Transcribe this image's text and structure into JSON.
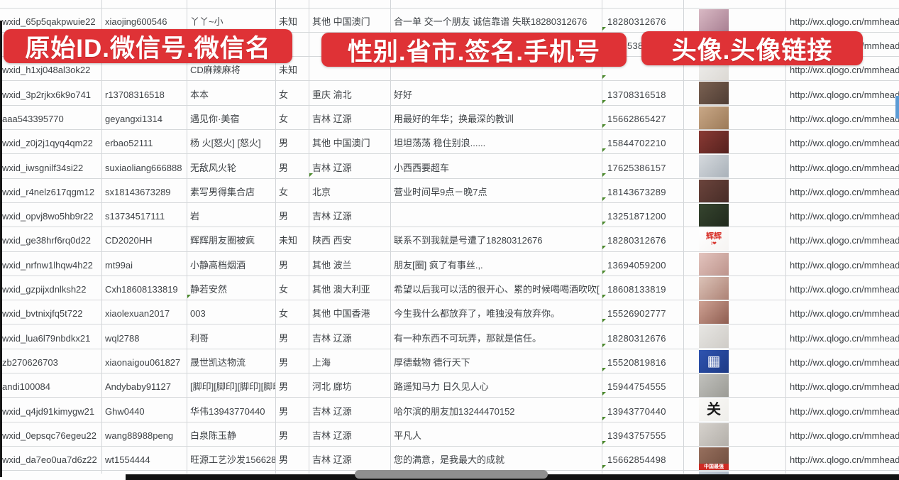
{
  "app": {
    "type": "spreadsheet-screenshot",
    "visible_chrome": "none"
  },
  "banners": [
    {
      "text": "原始ID.微信号.微信名"
    },
    {
      "text": "性别.省市.签名.手机号"
    },
    {
      "text": "头像.头像链接"
    }
  ],
  "colors": {
    "banner_red": "#df3236",
    "banner_text": "#ffffff",
    "grid_line": "#d2d5d8",
    "cell_text": "#3f4347",
    "flag_green": "#4b8a2c",
    "bottom_bar": "#121212",
    "scroll_handle": "#8f8f8f",
    "scrollbar_fragment_blue": "#5b9bd5",
    "avatar_strip_red": "#ce2b24"
  },
  "url_repeated": "http://wx.qlogo.cn/mmhead",
  "rows": [
    {
      "id": "wxid_65p5qakpwuie22",
      "wechat_id": "xiaojing600546",
      "name": "丫丫~小",
      "gender": "未知",
      "province": "其他 中国澳门",
      "signature": "合一单 交一个朋友 诚信靠谱 失联18280312676",
      "phone": "18280312676",
      "phone_frag": false,
      "phone_flag": true,
      "name_flag": false,
      "province_flag": false,
      "url": "http://wx.qlogo.cn/mmhead",
      "avatar": {
        "c1": "#d9b9c4",
        "c2": "#a87f92",
        "label": "",
        "label_color": "",
        "sub": "",
        "strip": ""
      }
    },
    {
      "id": "",
      "wechat_id": "",
      "name": "",
      "gender": "",
      "province": "",
      "signature": "",
      "phone": "5386",
      "phone_frag": true,
      "phone_flag": true,
      "name_flag": false,
      "province_flag": false,
      "url": "http://wx.qlogo.cn/mmhead",
      "avatar": {
        "c1": "#6a79c0",
        "c2": "#8a9ad8",
        "label": "",
        "label_color": "",
        "sub": "",
        "strip": ""
      }
    },
    {
      "id": "wxid_h1xj048al3ok22",
      "wechat_id": "",
      "name": "CD麻辣麻将",
      "gender": "未知",
      "province": "",
      "signature": "",
      "phone": "",
      "phone_frag": false,
      "phone_flag": true,
      "name_flag": false,
      "province_flag": false,
      "url": "http://wx.qlogo.cn/mmhead",
      "avatar": {
        "c1": "#efeeec",
        "c2": "#dcd9d4",
        "label": "",
        "label_color": "",
        "sub": "",
        "strip": ""
      }
    },
    {
      "id": "wxid_3p2rjkx6k9o741",
      "wechat_id": "r13708316518",
      "name": "本本",
      "gender": "女",
      "province": "重庆 渝北",
      "signature": "好好",
      "phone": "13708316518",
      "phone_frag": false,
      "phone_flag": true,
      "name_flag": false,
      "province_flag": false,
      "url": "http://wx.qlogo.cn/mmhead",
      "avatar": {
        "c1": "#7a6152",
        "c2": "#4e3c33",
        "label": "",
        "label_color": "",
        "sub": "",
        "strip": ""
      }
    },
    {
      "id": "aaa543395770",
      "wechat_id": "geyangxi1314",
      "name": "遇见你·美宿",
      "gender": "女",
      "province": "吉林 辽源",
      "signature": "用最好的年华；换最深的教训",
      "phone": "15662865427",
      "phone_frag": false,
      "phone_flag": true,
      "name_flag": false,
      "province_flag": false,
      "url": "http://wx.qlogo.cn/mmhead",
      "avatar": {
        "c1": "#c9a887",
        "c2": "#9c7a58",
        "label": "",
        "label_color": "",
        "sub": "",
        "strip": ""
      }
    },
    {
      "id": "wxid_z0j2j1qyq4qm22",
      "wechat_id": "erbao52111",
      "name": "杨 火[怒火] [怒火]",
      "gender": "男",
      "province": "其他 中国澳门",
      "signature": "坦坦荡荡 稳住别浪......",
      "phone": "15844702210",
      "phone_frag": false,
      "phone_flag": true,
      "name_flag": false,
      "province_flag": false,
      "url": "http://wx.qlogo.cn/mmhead",
      "avatar": {
        "c1": "#8a3a34",
        "c2": "#55211e",
        "label": "",
        "label_color": "",
        "sub": "",
        "strip": ""
      }
    },
    {
      "id": "wxid_iwsgnilf34si22",
      "wechat_id": "suxiaoliang666888",
      "name": "无敌风火轮",
      "gender": "男",
      "province": "吉林 辽源",
      "signature": "小西西要超车",
      "phone": "17625386157",
      "phone_frag": false,
      "phone_flag": true,
      "name_flag": false,
      "province_flag": true,
      "url": "http://wx.qlogo.cn/mmhead",
      "avatar": {
        "c1": "#d6dade",
        "c2": "#a9b1b9",
        "label": "",
        "label_color": "",
        "sub": "",
        "strip": ""
      }
    },
    {
      "id": "wxid_r4nelz617qgm12",
      "wechat_id": "sx18143673289",
      "name": "素写男得集合店",
      "gender": "女",
      "province": "北京",
      "signature": "营业时间早9点－晚7点",
      "phone": "18143673289",
      "phone_frag": false,
      "phone_flag": true,
      "name_flag": false,
      "province_flag": false,
      "url": "http://wx.qlogo.cn/mmhead",
      "avatar": {
        "c1": "#6b443c",
        "c2": "#472c27",
        "label": "",
        "label_color": "",
        "sub": "",
        "strip": ""
      }
    },
    {
      "id": "wxid_opvj8wo5hb9r22",
      "wechat_id": "s13734517111",
      "name": "岩",
      "gender": "男",
      "province": "吉林 辽源",
      "signature": "",
      "phone": "13251871200",
      "phone_frag": false,
      "phone_flag": true,
      "name_flag": false,
      "province_flag": false,
      "url": "http://wx.qlogo.cn/mmhead",
      "avatar": {
        "c1": "#36452f",
        "c2": "#20291c",
        "label": "",
        "label_color": "",
        "sub": "",
        "strip": ""
      }
    },
    {
      "id": "wxid_ge38hrf6rq0d22",
      "wechat_id": "CD2020HH",
      "name": "辉辉朋友圈被疯",
      "gender": "未知",
      "province": "陕西 西安",
      "signature": "联系不到我就是号遭了18280312676",
      "phone": "18280312676",
      "phone_frag": false,
      "phone_flag": true,
      "name_flag": false,
      "province_flag": false,
      "url": "http://wx.qlogo.cn/mmhead",
      "avatar": {
        "c1": "#ffffff",
        "c2": "#f6f4f2",
        "label": "辉辉",
        "label_color": "#d8332c",
        "sub": "I❤",
        "strip": ""
      }
    },
    {
      "id": "wxid_nrfnw1lhqw4h22",
      "wechat_id": "mt99ai",
      "name": "小静高档烟酒",
      "gender": "男",
      "province": "其他 波兰",
      "signature": "朋友[圈] 疯了有事丝.,.",
      "phone": "13694059200",
      "phone_frag": false,
      "phone_flag": true,
      "name_flag": false,
      "province_flag": false,
      "url": "http://wx.qlogo.cn/mmhead",
      "avatar": {
        "c1": "#e3c4be",
        "c2": "#bd948c",
        "label": "",
        "label_color": "",
        "sub": "",
        "strip": ""
      }
    },
    {
      "id": "wxid_gzpijxdnlksh22",
      "wechat_id": "Cxh18608133819",
      "name": "静若安然",
      "gender": "女",
      "province": "其他 澳大利亚",
      "signature": "希望以后我可以活的很开心、累的时候喝喝酒吹吹[",
      "phone": "18608133819",
      "phone_frag": false,
      "phone_flag": true,
      "name_flag": true,
      "province_flag": false,
      "url": "http://wx.qlogo.cn/mmhead",
      "avatar": {
        "c1": "#dcc3b8",
        "c2": "#ad8275",
        "label": "",
        "label_color": "",
        "sub": "",
        "strip": ""
      }
    },
    {
      "id": "wxid_bvtnixjfq5t722",
      "wechat_id": "xiaolexuan2017",
      "name": "003",
      "gender": "女",
      "province": "其他 中国香港",
      "signature": "今生我什么都放弃了，唯独没有放弃你。",
      "phone": "15526902777",
      "phone_frag": false,
      "phone_flag": true,
      "name_flag": false,
      "province_flag": false,
      "url": "http://wx.qlogo.cn/mmhead",
      "avatar": {
        "c1": "#cfa294",
        "c2": "#8e5d50",
        "label": "",
        "label_color": "",
        "sub": "",
        "strip": ""
      }
    },
    {
      "id": "wxid_lua6l79nbdkx21",
      "wechat_id": "wql2788",
      "name": "利哥",
      "gender": "男",
      "province": "吉林 辽源",
      "signature": "有一种东西不可玩弄，那就是信任。",
      "phone": "18280312676",
      "phone_frag": false,
      "phone_flag": true,
      "name_flag": false,
      "province_flag": false,
      "url": "http://wx.qlogo.cn/mmhead",
      "avatar": {
        "c1": "#e7e6e3",
        "c2": "#cfccc7",
        "label": "",
        "label_color": "",
        "sub": "",
        "strip": ""
      }
    },
    {
      "id": "zb270626703",
      "wechat_id": "xiaonaigou061827",
      "name": "晟世凯达物流",
      "gender": "男",
      "province": "上海",
      "signature": "厚德载物 德行天下",
      "phone": "15520819816",
      "phone_frag": false,
      "phone_flag": true,
      "name_flag": false,
      "province_flag": false,
      "url": "http://wx.qlogo.cn/mmhead",
      "avatar": {
        "c1": "#2f54b0",
        "c2": "#1d3a85",
        "label": "▦",
        "label_color": "#ffffff",
        "sub": "",
        "strip": ""
      }
    },
    {
      "id": "andi100084",
      "wechat_id": "Andybaby91127",
      "name": "[脚印][脚印][脚印][脚印]",
      "gender": "男",
      "province": "河北 廊坊",
      "signature": "路遥知马力 日久见人心",
      "phone": "15944754555",
      "phone_frag": false,
      "phone_flag": true,
      "name_flag": false,
      "province_flag": false,
      "url": "http://wx.qlogo.cn/mmhead",
      "avatar": {
        "c1": "#c1c1bd",
        "c2": "#9b9b95",
        "label": "",
        "label_color": "",
        "sub": "",
        "strip": ""
      }
    },
    {
      "id": "wxid_q4jd91kimygw21",
      "wechat_id": "Ghw0440",
      "name": "华伟13943770440",
      "gender": "男",
      "province": "吉林 辽源",
      "signature": "哈尔滨的朋友加13244470152",
      "phone": "13943770440",
      "phone_frag": false,
      "phone_flag": true,
      "name_flag": false,
      "province_flag": false,
      "url": "http://wx.qlogo.cn/mmhead",
      "avatar": {
        "c1": "#faf9f7",
        "c2": "#efeeea",
        "label": "关",
        "label_color": "#1a1a1a",
        "sub": "",
        "strip": ""
      }
    },
    {
      "id": "wxid_0epsqc76egeu22",
      "wechat_id": "wang88988peng",
      "name": "白泉陈玉静",
      "gender": "男",
      "province": "吉林 辽源",
      "signature": "平凡人",
      "phone": "13943757555",
      "phone_frag": false,
      "phone_flag": true,
      "name_flag": false,
      "province_flag": false,
      "url": "http://wx.qlogo.cn/mmhead",
      "avatar": {
        "c1": "#d6d2cd",
        "c2": "#b3afa9",
        "label": "",
        "label_color": "",
        "sub": "",
        "strip": ""
      }
    },
    {
      "id": "wxid_da7eo0ua7d6z22",
      "wechat_id": "wt1554444",
      "name": "旺源工艺沙发15662854",
      "gender": "男",
      "province": "吉林 辽源",
      "signature": "您的满意，是我最大的成就",
      "phone": "15662854498",
      "phone_frag": false,
      "phone_flag": true,
      "name_flag": false,
      "province_flag": false,
      "url": "http://wx.qlogo.cn/mmhead",
      "avatar": {
        "c1": "#97705e",
        "c2": "#6e4c3d",
        "label": "",
        "label_color": "",
        "sub": "",
        "strip": "中国最强"
      }
    },
    {
      "id": "",
      "wechat_id": "",
      "name": "",
      "gender": "",
      "province": "",
      "signature": "",
      "phone": "",
      "phone_frag": false,
      "phone_flag": false,
      "name_flag": false,
      "province_flag": false,
      "url": "",
      "avatar": {
        "c1": "#c2ccd6",
        "c2": "#9fadbb",
        "label": "",
        "label_color": "",
        "sub": "",
        "strip": ""
      }
    }
  ]
}
